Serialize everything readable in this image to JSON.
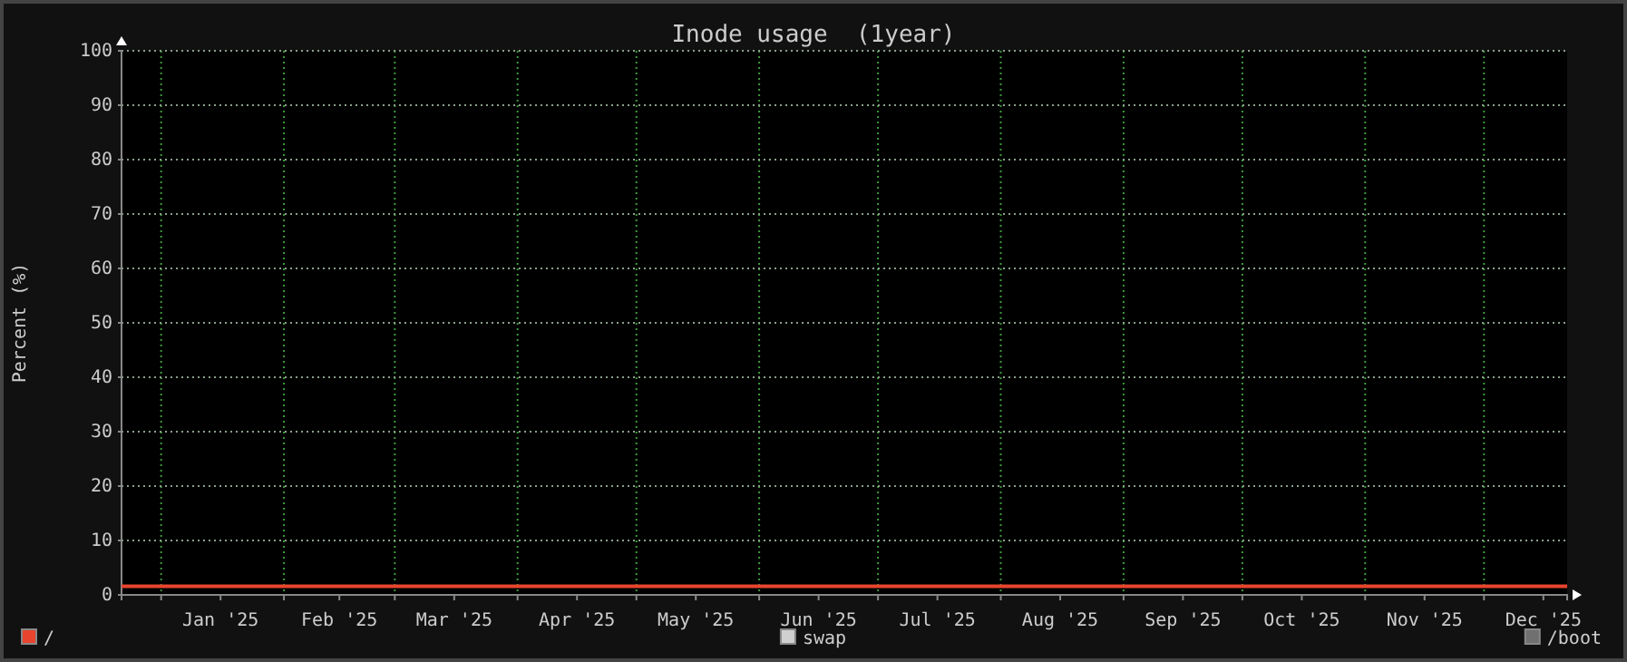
{
  "chart_data": {
    "type": "line",
    "title": "Inode usage  (1year)",
    "ylabel": "Percent (%)",
    "x": [
      "2024-12-22",
      "2025-02-01",
      "2025-04-01",
      "2025-06-01",
      "2025-08-01",
      "2025-10-01",
      "2025-12-22"
    ],
    "series": [
      {
        "name": "/",
        "color": "#e8442e",
        "values": [
          1.6,
          1.6,
          1.6,
          1.6,
          1.6,
          1.6,
          1.6
        ]
      },
      {
        "name": "swap",
        "color": "#d0d0d0",
        "values": [
          null,
          null,
          null,
          null,
          null,
          null,
          null
        ]
      },
      {
        "name": "/boot",
        "color": "#707070",
        "values": [
          null,
          null,
          null,
          null,
          null,
          null,
          null
        ]
      }
    ],
    "xlim": [
      "2024-12-22",
      "2025-12-22"
    ],
    "xticks": [
      {
        "value": "2025-01-01",
        "label": null
      },
      {
        "value": "2025-01-16",
        "label": "Jan '25"
      },
      {
        "value": "2025-02-01",
        "label": null
      },
      {
        "value": "2025-02-15",
        "label": "Feb '25"
      },
      {
        "value": "2025-03-01",
        "label": null
      },
      {
        "value": "2025-03-16",
        "label": "Mar '25"
      },
      {
        "value": "2025-04-01",
        "label": null
      },
      {
        "value": "2025-04-16",
        "label": "Apr '25"
      },
      {
        "value": "2025-05-01",
        "label": null
      },
      {
        "value": "2025-05-16",
        "label": "May '25"
      },
      {
        "value": "2025-06-01",
        "label": null
      },
      {
        "value": "2025-06-16",
        "label": "Jun '25"
      },
      {
        "value": "2025-07-01",
        "label": null
      },
      {
        "value": "2025-07-16",
        "label": "Jul '25"
      },
      {
        "value": "2025-08-01",
        "label": null
      },
      {
        "value": "2025-08-16",
        "label": "Aug '25"
      },
      {
        "value": "2025-09-01",
        "label": null
      },
      {
        "value": "2025-09-16",
        "label": "Sep '25"
      },
      {
        "value": "2025-10-01",
        "label": null
      },
      {
        "value": "2025-10-16",
        "label": "Oct '25"
      },
      {
        "value": "2025-11-01",
        "label": null
      },
      {
        "value": "2025-11-16",
        "label": "Nov '25"
      },
      {
        "value": "2025-12-01",
        "label": null
      },
      {
        "value": "2025-12-16",
        "label": "Dec '25"
      }
    ],
    "ylim": [
      0,
      100
    ],
    "yticks": [
      0,
      10,
      20,
      30,
      40,
      50,
      60,
      70,
      80,
      90,
      100
    ],
    "grid": true,
    "legend": "bottom",
    "line_style": "solid",
    "marker": "none"
  }
}
